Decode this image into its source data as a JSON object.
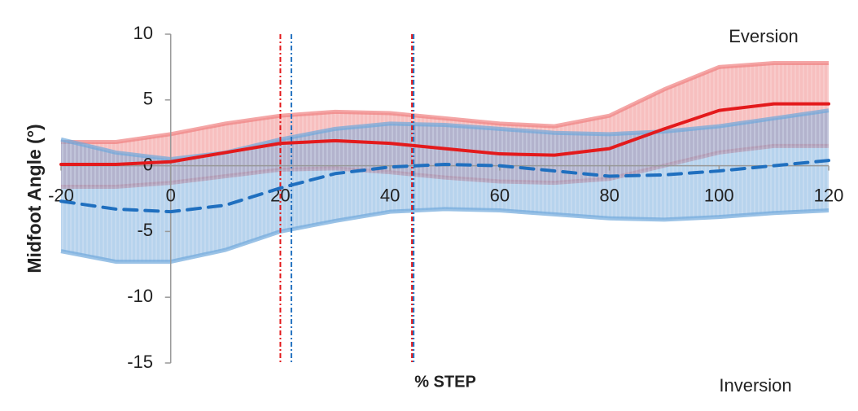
{
  "chart_data": {
    "type": "line",
    "x_label": "% STEP",
    "y_label": "Midfoot Angle (°)",
    "top_annotation": "Eversion",
    "bottom_annotation": "Inversion",
    "xlim": [
      -20,
      120
    ],
    "ylim": [
      -15,
      10
    ],
    "xticks": [
      -20,
      0,
      20,
      40,
      60,
      80,
      100,
      120
    ],
    "yticks": [
      10,
      5,
      0,
      -5,
      -10,
      -15
    ],
    "x": [
      -20,
      -10,
      0,
      10,
      20,
      30,
      40,
      50,
      60,
      70,
      80,
      90,
      100,
      110,
      120
    ],
    "series": [
      {
        "color": "#e31a1c",
        "style": "solid",
        "band_color": "#f08080",
        "values": [
          0.1,
          0.1,
          0.3,
          1.0,
          1.7,
          1.9,
          1.7,
          1.3,
          0.9,
          0.8,
          1.3,
          2.8,
          4.2,
          4.7,
          4.7
        ],
        "band_upper": [
          1.8,
          1.8,
          2.4,
          3.2,
          3.8,
          4.1,
          4.0,
          3.6,
          3.2,
          3.0,
          3.8,
          5.8,
          7.5,
          7.8,
          7.8
        ],
        "band_lower": [
          -1.6,
          -1.6,
          -1.3,
          -0.8,
          -0.3,
          -0.2,
          -0.5,
          -0.9,
          -1.2,
          -1.3,
          -1.0,
          0,
          1.0,
          1.5,
          1.5
        ]
      },
      {
        "color": "#1f6fbf",
        "style": "dashed",
        "band_color": "#6fa8dc",
        "values": [
          -2.7,
          -3.3,
          -3.5,
          -3.0,
          -1.7,
          -0.6,
          -0.1,
          0.1,
          0,
          -0.4,
          -0.8,
          -0.7,
          -0.4,
          0,
          0.4
        ],
        "band_upper": [
          2.0,
          1.0,
          0.5,
          1.0,
          2.0,
          2.8,
          3.2,
          3.1,
          2.8,
          2.5,
          2.4,
          2.6,
          3.0,
          3.6,
          4.2
        ],
        "band_lower": [
          -6.5,
          -7.3,
          -7.3,
          -6.4,
          -5.0,
          -4.2,
          -3.5,
          -3.3,
          -3.4,
          -3.7,
          -4.0,
          -4.1,
          -3.9,
          -3.6,
          -3.4
        ]
      }
    ],
    "vlines": [
      {
        "x": 20,
        "color": "#e31a1c"
      },
      {
        "x": 22,
        "color": "#1f6fbf"
      },
      {
        "x": 44,
        "color": "#e31a1c"
      },
      {
        "x": 44.3,
        "color": "#1f6fbf"
      }
    ]
  }
}
